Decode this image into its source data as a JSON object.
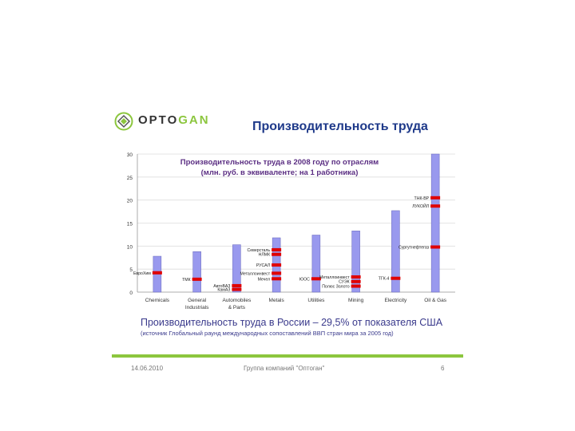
{
  "logo": {
    "part1": "OPTO",
    "part2": "GAN"
  },
  "slide_title": "Производительность труда",
  "caption": "Производительность труда в России – 29,5% от показателя США",
  "source_note": "(источник Глобальный раунд международных сопоставлений ВВП стран мира за 2005 год)",
  "footer": {
    "date": "14.06.2010",
    "company": "Группа компаний \"Оптоган\"",
    "page": "6"
  },
  "colors": {
    "bar": "#9999ee",
    "marker": "#e00000",
    "title": "#1f3a8a",
    "accent": "#8cc63e"
  },
  "chart_data": {
    "type": "bar",
    "title_line1": "Производительность труда в 2008 году по отраслям",
    "title_line2": "(млн. руб. в эквиваленте; на 1 работника)",
    "ylim": [
      0,
      30
    ],
    "y_ticks": [
      "0",
      "5",
      "10",
      "15",
      "20",
      "25",
      "30"
    ],
    "categories": [
      "Chemicals",
      "General Industrials",
      "Automobiles & Parts",
      "Metals",
      "Utilities",
      "Mining",
      "Electricity",
      "Oil & Gas"
    ],
    "category_lines": [
      [
        "Chemicals"
      ],
      [
        "General",
        "Industrials"
      ],
      [
        "Automobiles",
        "& Parts"
      ],
      [
        "Metals"
      ],
      [
        "Utilities"
      ],
      [
        "Mining"
      ],
      [
        "Electricity"
      ],
      [
        "Oil & Gas"
      ]
    ],
    "values": [
      7.8,
      8.8,
      10.3,
      11.8,
      12.4,
      13.3,
      17.7,
      30
    ],
    "markers": [
      {
        "category": 0,
        "value": 4.2,
        "label": "ЕвроХим"
      },
      {
        "category": 1,
        "value": 2.8,
        "label": "ТМК"
      },
      {
        "category": 2,
        "value": 1.4,
        "label": "АвтоВАЗ"
      },
      {
        "category": 2,
        "value": 0.6,
        "label": "КамАЗ"
      },
      {
        "category": 3,
        "value": 9.2,
        "label": "Северсталь"
      },
      {
        "category": 3,
        "value": 8.2,
        "label": "НЛМК"
      },
      {
        "category": 3,
        "value": 5.9,
        "label": "РУСАЛ"
      },
      {
        "category": 3,
        "value": 4.1,
        "label": "Металлоинвест"
      },
      {
        "category": 3,
        "value": 2.9,
        "label": "Мечел"
      },
      {
        "category": 4,
        "value": 2.9,
        "label": "ЮОС"
      },
      {
        "category": 5,
        "value": 3.3,
        "label": "Металлоинвест"
      },
      {
        "category": 5,
        "value": 2.3,
        "label": "СУЭК"
      },
      {
        "category": 5,
        "value": 1.3,
        "label": "Полюс Золото"
      },
      {
        "category": 6,
        "value": 3.0,
        "label": "ТГК-4"
      },
      {
        "category": 7,
        "value": 20.5,
        "label": "ТНК-BP"
      },
      {
        "category": 7,
        "value": 18.7,
        "label": "ЛУКОЙЛ"
      },
      {
        "category": 7,
        "value": 9.8,
        "label": "Сургутнефтегаз"
      }
    ]
  }
}
